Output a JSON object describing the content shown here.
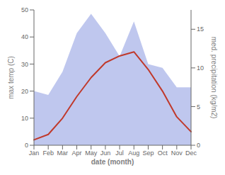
{
  "chart_data": {
    "type": "line",
    "xlabel": "date (month)",
    "ylabel": "max temp (C)",
    "y2label": "med. precipitation (kg/m2)",
    "categories": [
      "Jan",
      "Feb",
      "Mar",
      "Apr",
      "May",
      "Jun",
      "Jul",
      "Aug",
      "Sep",
      "Oct",
      "Nov",
      "Dec"
    ],
    "ylim": [
      0,
      50
    ],
    "yticks": [
      0,
      10,
      20,
      30,
      40,
      50
    ],
    "y2lim": [
      0,
      17.5
    ],
    "y2ticks": [
      0,
      5,
      10,
      15
    ],
    "grid": false,
    "series": [
      {
        "type": "area",
        "color": "#aab4e8",
        "axis": "y2",
        "values": [
          7.0,
          6.5,
          9.5,
          14.5,
          17.0,
          14.5,
          11.5,
          16.0,
          10.5,
          10.0,
          7.5,
          7.5
        ]
      },
      {
        "type": "line",
        "color": "#c0392b",
        "values": [
          2.0,
          4.0,
          10.0,
          18.0,
          25.0,
          30.5,
          33.0,
          34.5,
          28.0,
          20.0,
          10.5,
          5.0
        ]
      }
    ]
  }
}
